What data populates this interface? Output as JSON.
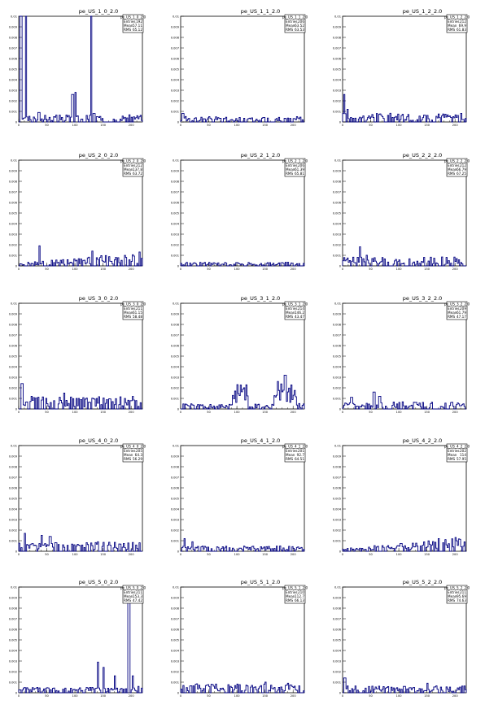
{
  "chart_data": [
    {
      "type": "line",
      "title": "pe_US_1_0_2.0",
      "stats": {
        "name": "pe_US_1_0_2.0",
        "entries": "192",
        "mean": "57.11",
        "rms": "65.12"
      },
      "xlim": [
        0,
        220
      ],
      "ylim": [
        0,
        0.01
      ],
      "xticks": [
        "0",
        "50",
        "100",
        "150",
        "200"
      ],
      "yticks": [
        "0",
        "0.001",
        "0.002",
        "0.003",
        "0.004",
        "0.005",
        "0.006",
        "0.007",
        "0.008",
        "0.009",
        "0.01"
      ],
      "series": [
        {
          "profile": "spikes",
          "spikes": [
            [
              3,
              0.01
            ],
            [
              12,
              0.01
            ],
            [
              27,
              0.0003
            ],
            [
              35,
              0.0009
            ],
            [
              95,
              0.0026
            ],
            [
              100,
              0.0028
            ],
            [
              128,
              0.01
            ],
            [
              133,
              0.0008
            ]
          ]
        }
      ]
    },
    {
      "type": "line",
      "title": "pe_US_1_1_2.0",
      "stats": {
        "name": "pe_US_1_1_2.0",
        "entries": "206",
        "mean": "63.52",
        "rms": "63.53"
      },
      "xlim": [
        0,
        220
      ],
      "ylim": [
        0,
        0.01
      ],
      "series": [
        {
          "profile": "flat",
          "level": 0.0003,
          "spikes": [
            [
              3,
              0.0008
            ]
          ]
        }
      ]
    },
    {
      "type": "line",
      "title": "pe_US_1_2_2.0",
      "stats": {
        "name": "pe_US_1_2_2.0",
        "entries": "212",
        "mean": "69.9",
        "rms": "61.83"
      },
      "xlim": [
        0,
        220
      ],
      "ylim": [
        0,
        0.01
      ],
      "series": [
        {
          "profile": "flat",
          "level": 0.0005,
          "spikes": [
            [
              2,
              0.0026
            ],
            [
              8,
              0.0012
            ],
            [
              60,
              0.0008
            ]
          ]
        }
      ]
    },
    {
      "type": "line",
      "title": "pe_US_2_0_2.0",
      "stats": {
        "name": "pe_US_2_0_2.0",
        "entries": "212",
        "mean": "137.8",
        "rms": "63.72"
      },
      "xlim": [
        0,
        220
      ],
      "ylim": [
        0,
        0.01
      ],
      "series": [
        {
          "profile": "rising",
          "level": 0.0004,
          "spikes": [
            [
              36,
              0.0019
            ],
            [
              130,
              0.0014
            ]
          ]
        }
      ]
    },
    {
      "type": "line",
      "title": "pe_US_2_1_2.0",
      "stats": {
        "name": "pe_US_2_1_2.0",
        "entries": "206",
        "mean": "61.39",
        "rms": "65.81"
      },
      "xlim": [
        0,
        220
      ],
      "ylim": [
        0,
        0.01
      ],
      "series": [
        {
          "profile": "flat",
          "level": 0.0002,
          "spikes": []
        }
      ]
    },
    {
      "type": "line",
      "title": "pe_US_2_2_2.0",
      "stats": {
        "name": "pe_US_2_2_2.0",
        "entries": "212",
        "mean": "66.79",
        "rms": "67.25"
      },
      "xlim": [
        0,
        220
      ],
      "ylim": [
        0,
        0.01
      ],
      "series": [
        {
          "profile": "flat",
          "level": 0.0005,
          "spikes": [
            [
              30,
              0.0018
            ],
            [
              42,
              0.001
            ]
          ]
        }
      ]
    },
    {
      "type": "line",
      "title": "pe_US_3_0_2.0",
      "stats": {
        "name": "pe_US_3_0_2.0",
        "entries": "211",
        "mean": "61.15",
        "rms": "58.48"
      },
      "xlim": [
        0,
        220
      ],
      "ylim": [
        0,
        0.01
      ],
      "series": [
        {
          "profile": "flat",
          "level": 0.0007,
          "spikes": [
            [
              5,
              0.0024
            ],
            [
              22,
              0.0012
            ],
            [
              80,
              0.0015
            ]
          ]
        }
      ]
    },
    {
      "type": "line",
      "title": "pe_US_3_1_2.0",
      "stats": {
        "name": "pe_US_3_1_2.0",
        "entries": "214",
        "mean": "146.2",
        "rms": "43.47"
      },
      "xlim": [
        0,
        220
      ],
      "ylim": [
        0,
        0.01
      ],
      "series": [
        {
          "profile": "bumps",
          "level": 0.0003,
          "spikes": [
            [
              100,
              0.0023
            ],
            [
              112,
              0.002
            ],
            [
              172,
              0.0026
            ],
            [
              185,
              0.0032
            ],
            [
              200,
              0.0013
            ]
          ]
        }
      ]
    },
    {
      "type": "line",
      "title": "pe_US_3_2_2.0",
      "stats": {
        "name": "pe_US_3_2_2.0",
        "entries": "209",
        "mean": "61.79",
        "rms": "47.17"
      },
      "xlim": [
        0,
        220
      ],
      "ylim": [
        0,
        0.01
      ],
      "series": [
        {
          "profile": "flat",
          "level": 0.0004,
          "spikes": [
            [
              15,
              0.0011
            ],
            [
              55,
              0.0016
            ],
            [
              65,
              0.0012
            ]
          ]
        }
      ]
    },
    {
      "type": "line",
      "title": "pe_US_4_0_2.0",
      "stats": {
        "name": "pe_US_4_0_2.0",
        "entries": "205",
        "mean": "64.3",
        "rms": "56.29"
      },
      "xlim": [
        0,
        220
      ],
      "ylim": [
        0,
        0.01
      ],
      "series": [
        {
          "profile": "flat",
          "level": 0.0005,
          "spikes": [
            [
              10,
              0.0017
            ],
            [
              40,
              0.0015
            ],
            [
              55,
              0.0014
            ],
            [
              140,
              0.0009
            ]
          ]
        }
      ]
    },
    {
      "type": "line",
      "title": "pe_US_4_1_2.0",
      "stats": {
        "name": "pe_US_4_1_2.0",
        "entries": "201",
        "mean": "92.7",
        "rms": "64.51"
      },
      "xlim": [
        0,
        220
      ],
      "ylim": [
        0,
        0.01
      ],
      "series": [
        {
          "profile": "flat",
          "level": 0.0003,
          "spikes": [
            [
              6,
              0.0012
            ],
            [
              20,
              0.0009
            ]
          ]
        }
      ]
    },
    {
      "type": "line",
      "title": "pe_US_4_2_2.0",
      "stats": {
        "name": "pe_US_4_2_2.0",
        "entries": "202",
        "mean": "114",
        "rms": "57.95"
      },
      "xlim": [
        0,
        220
      ],
      "ylim": [
        0,
        0.01
      ],
      "series": [
        {
          "profile": "rising",
          "level": 0.0004,
          "spikes": [
            [
              170,
              0.0012
            ],
            [
              200,
              0.0013
            ]
          ]
        }
      ]
    },
    {
      "type": "line",
      "title": "pe_US_5_0_2.0",
      "stats": {
        "name": "pe_US_5_0_2.0",
        "entries": "211",
        "mean": "153.3",
        "rms": "47.42"
      },
      "xlim": [
        0,
        220
      ],
      "ylim": [
        0,
        0.01
      ],
      "series": [
        {
          "profile": "spikes",
          "level": 0.0003,
          "spikes": [
            [
              140,
              0.0029
            ],
            [
              150,
              0.0024
            ],
            [
              170,
              0.0016
            ],
            [
              195,
              0.01
            ],
            [
              202,
              0.0016
            ],
            [
              212,
              0.0006
            ]
          ]
        }
      ]
    },
    {
      "type": "line",
      "title": "pe_US_5_1_2.0",
      "stats": {
        "name": "pe_US_5_1_2.0",
        "entries": "210",
        "mean": "112.7",
        "rms": "66.13"
      },
      "xlim": [
        0,
        220
      ],
      "ylim": [
        0,
        0.01
      ],
      "series": [
        {
          "profile": "flat",
          "level": 0.0005,
          "spikes": [
            [
              150,
              0.001
            ],
            [
              190,
              0.0009
            ]
          ]
        }
      ]
    },
    {
      "type": "line",
      "title": "pe_US_5_2_2.0",
      "stats": {
        "name": "pe_US_5_2_2.0",
        "entries": "211",
        "mean": "95.69",
        "rms": "74.63"
      },
      "xlim": [
        0,
        220
      ],
      "ylim": [
        0,
        0.01
      ],
      "series": [
        {
          "profile": "flat",
          "level": 0.0004,
          "spikes": [
            [
              3,
              0.0014
            ],
            [
              150,
              0.0009
            ]
          ]
        }
      ]
    }
  ],
  "colors": {
    "line": "#000080",
    "axis": "#000000",
    "frame": "#000000",
    "background": "#ffffff"
  },
  "stats_labels": {
    "entries": "Entries",
    "mean": "Mean",
    "rms": "RMS"
  }
}
